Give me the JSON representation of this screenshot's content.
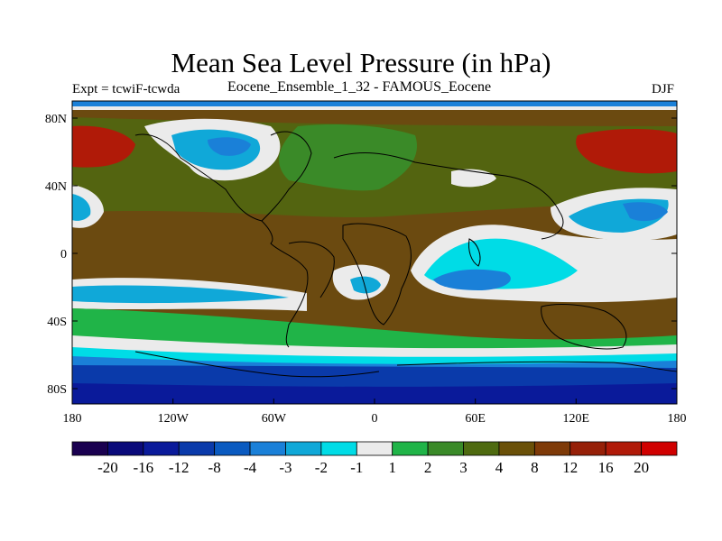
{
  "header": {
    "title": "Mean Sea Level Pressure (in hPa)",
    "left_text": "Expt = tcwiF-tcwda",
    "center_text": "Eocene_Ensemble_1_32 - FAMOUS_Eocene",
    "right_text": "DJF"
  },
  "axes": {
    "lat_labels": [
      "80N",
      "40N",
      "0",
      "40S",
      "80S"
    ],
    "lon_labels": [
      "180",
      "120W",
      "60W",
      "0",
      "60E",
      "120E",
      "180"
    ]
  },
  "colorbar": {
    "colors": [
      "#1a0050",
      "#0a0a7a",
      "#0a1a9a",
      "#0a3aaa",
      "#0a5ac0",
      "#1a80d8",
      "#10a8d8",
      "#00dce6",
      "#ebebeb",
      "#20b448",
      "#3a8a28",
      "#4e6a10",
      "#6a5008",
      "#7e3a08",
      "#962008",
      "#b01a08",
      "#d00000"
    ],
    "labels": [
      "-20",
      "-16",
      "-12",
      "-8",
      "-4",
      "-3",
      "-2",
      "-1",
      "1",
      "2",
      "3",
      "4",
      "8",
      "12",
      "16",
      "20"
    ]
  },
  "palette": {
    "background_field": "#6b4a10",
    "deep_blue": "#0a2a9a",
    "land_line": "#000000"
  }
}
